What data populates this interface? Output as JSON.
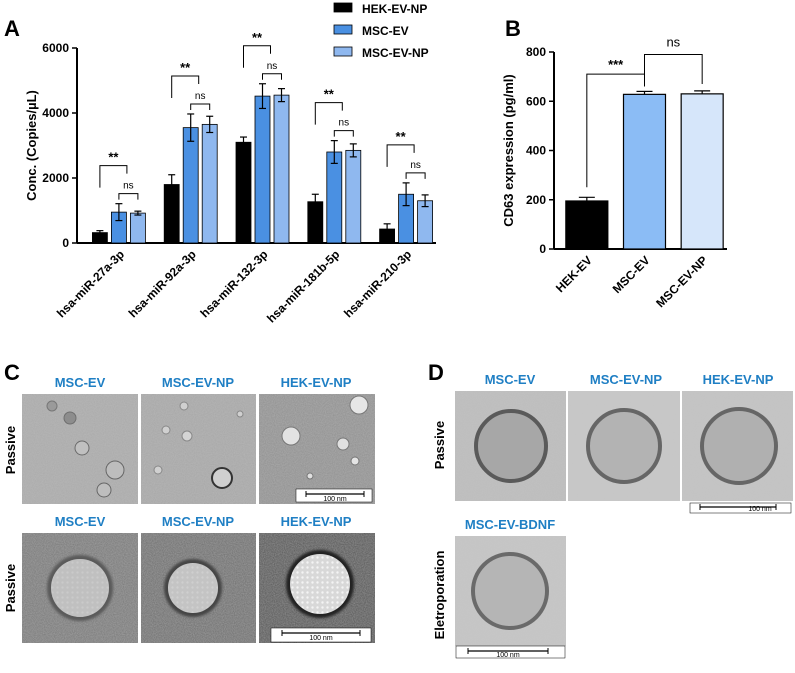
{
  "panel_labels": {
    "a": "A",
    "b": "B",
    "c": "C",
    "d": "D"
  },
  "colors": {
    "hek": "#000000",
    "msc": "#4a90e2",
    "msc_np": "#8fb8ef",
    "msc_ev_b": "#8bbcf5",
    "msc_ev_np_b": "#d6e6fa",
    "label_blue": "#1f7fc4"
  },
  "chart_data": [
    {
      "id": "A",
      "type": "bar",
      "ylabel": "Conc. (Copies/µL)",
      "ylim": [
        0,
        6000
      ],
      "yticks": [
        "0",
        "2000",
        "4000",
        "6000"
      ],
      "ytick_values": [
        0,
        2000,
        4000,
        6000
      ],
      "categories": [
        "hsa-miR-27a-3p",
        "hsa-miR-92a-3p",
        "hsa-miR-132-3p",
        "hsa-miR-181b-5p",
        "hsa-miR-210-3p"
      ],
      "series": [
        {
          "name": "HEK-EV-NP",
          "values": [
            320,
            1800,
            3100,
            1270,
            430
          ],
          "errors": [
            60,
            300,
            160,
            230,
            160
          ]
        },
        {
          "name": "MSC-EV",
          "values": [
            950,
            3550,
            4520,
            2800,
            1500
          ],
          "errors": [
            260,
            420,
            380,
            350,
            350
          ]
        },
        {
          "name": "MSC-EV-NP",
          "values": [
            920,
            3650,
            4550,
            2850,
            1300
          ],
          "errors": [
            60,
            250,
            200,
            200,
            180
          ]
        }
      ],
      "legend_position": "top-right",
      "significance": [
        {
          "top": "**",
          "bottom": "ns"
        },
        {
          "top": "**",
          "bottom": "ns"
        },
        {
          "top": "**",
          "bottom": "ns"
        },
        {
          "top": "**",
          "bottom": "ns"
        },
        {
          "top": "**",
          "bottom": "ns"
        }
      ]
    },
    {
      "id": "B",
      "type": "bar",
      "ylabel": "CD63 expression (pg/ml)",
      "ylim": [
        0,
        800
      ],
      "yticks": [
        "0",
        "200",
        "400",
        "600",
        "800"
      ],
      "ytick_values": [
        0,
        200,
        400,
        600,
        800
      ],
      "categories": [
        "HEK-EV",
        "MSC-EV",
        "MSC-EV-NP"
      ],
      "values": [
        195,
        628,
        630
      ],
      "errors": [
        15,
        12,
        12
      ],
      "significance": [
        {
          "label": "***",
          "pair": [
            0,
            1
          ]
        },
        {
          "label": "ns",
          "pair": [
            1,
            2
          ]
        }
      ]
    }
  ],
  "panel_c": {
    "side_label_top": "Passive",
    "side_label_bottom": "Passive",
    "top_titles": [
      "MSC-EV",
      "MSC-EV-NP",
      "HEK-EV-NP"
    ],
    "bottom_titles": [
      "MSC-EV",
      "MSC-EV-NP",
      "HEK-EV-NP"
    ],
    "scale_top": "100 nm",
    "scale_bottom": "100 nm"
  },
  "panel_d": {
    "side_label_top": "Passive",
    "side_label_bottom": "Eletroporation",
    "top_titles": [
      "MSC-EV",
      "MSC-EV-NP",
      "HEK-EV-NP"
    ],
    "bottom_title": "MSC-EV-BDNF",
    "scale_top": "100 nm",
    "scale_bottom": "100 nm"
  }
}
